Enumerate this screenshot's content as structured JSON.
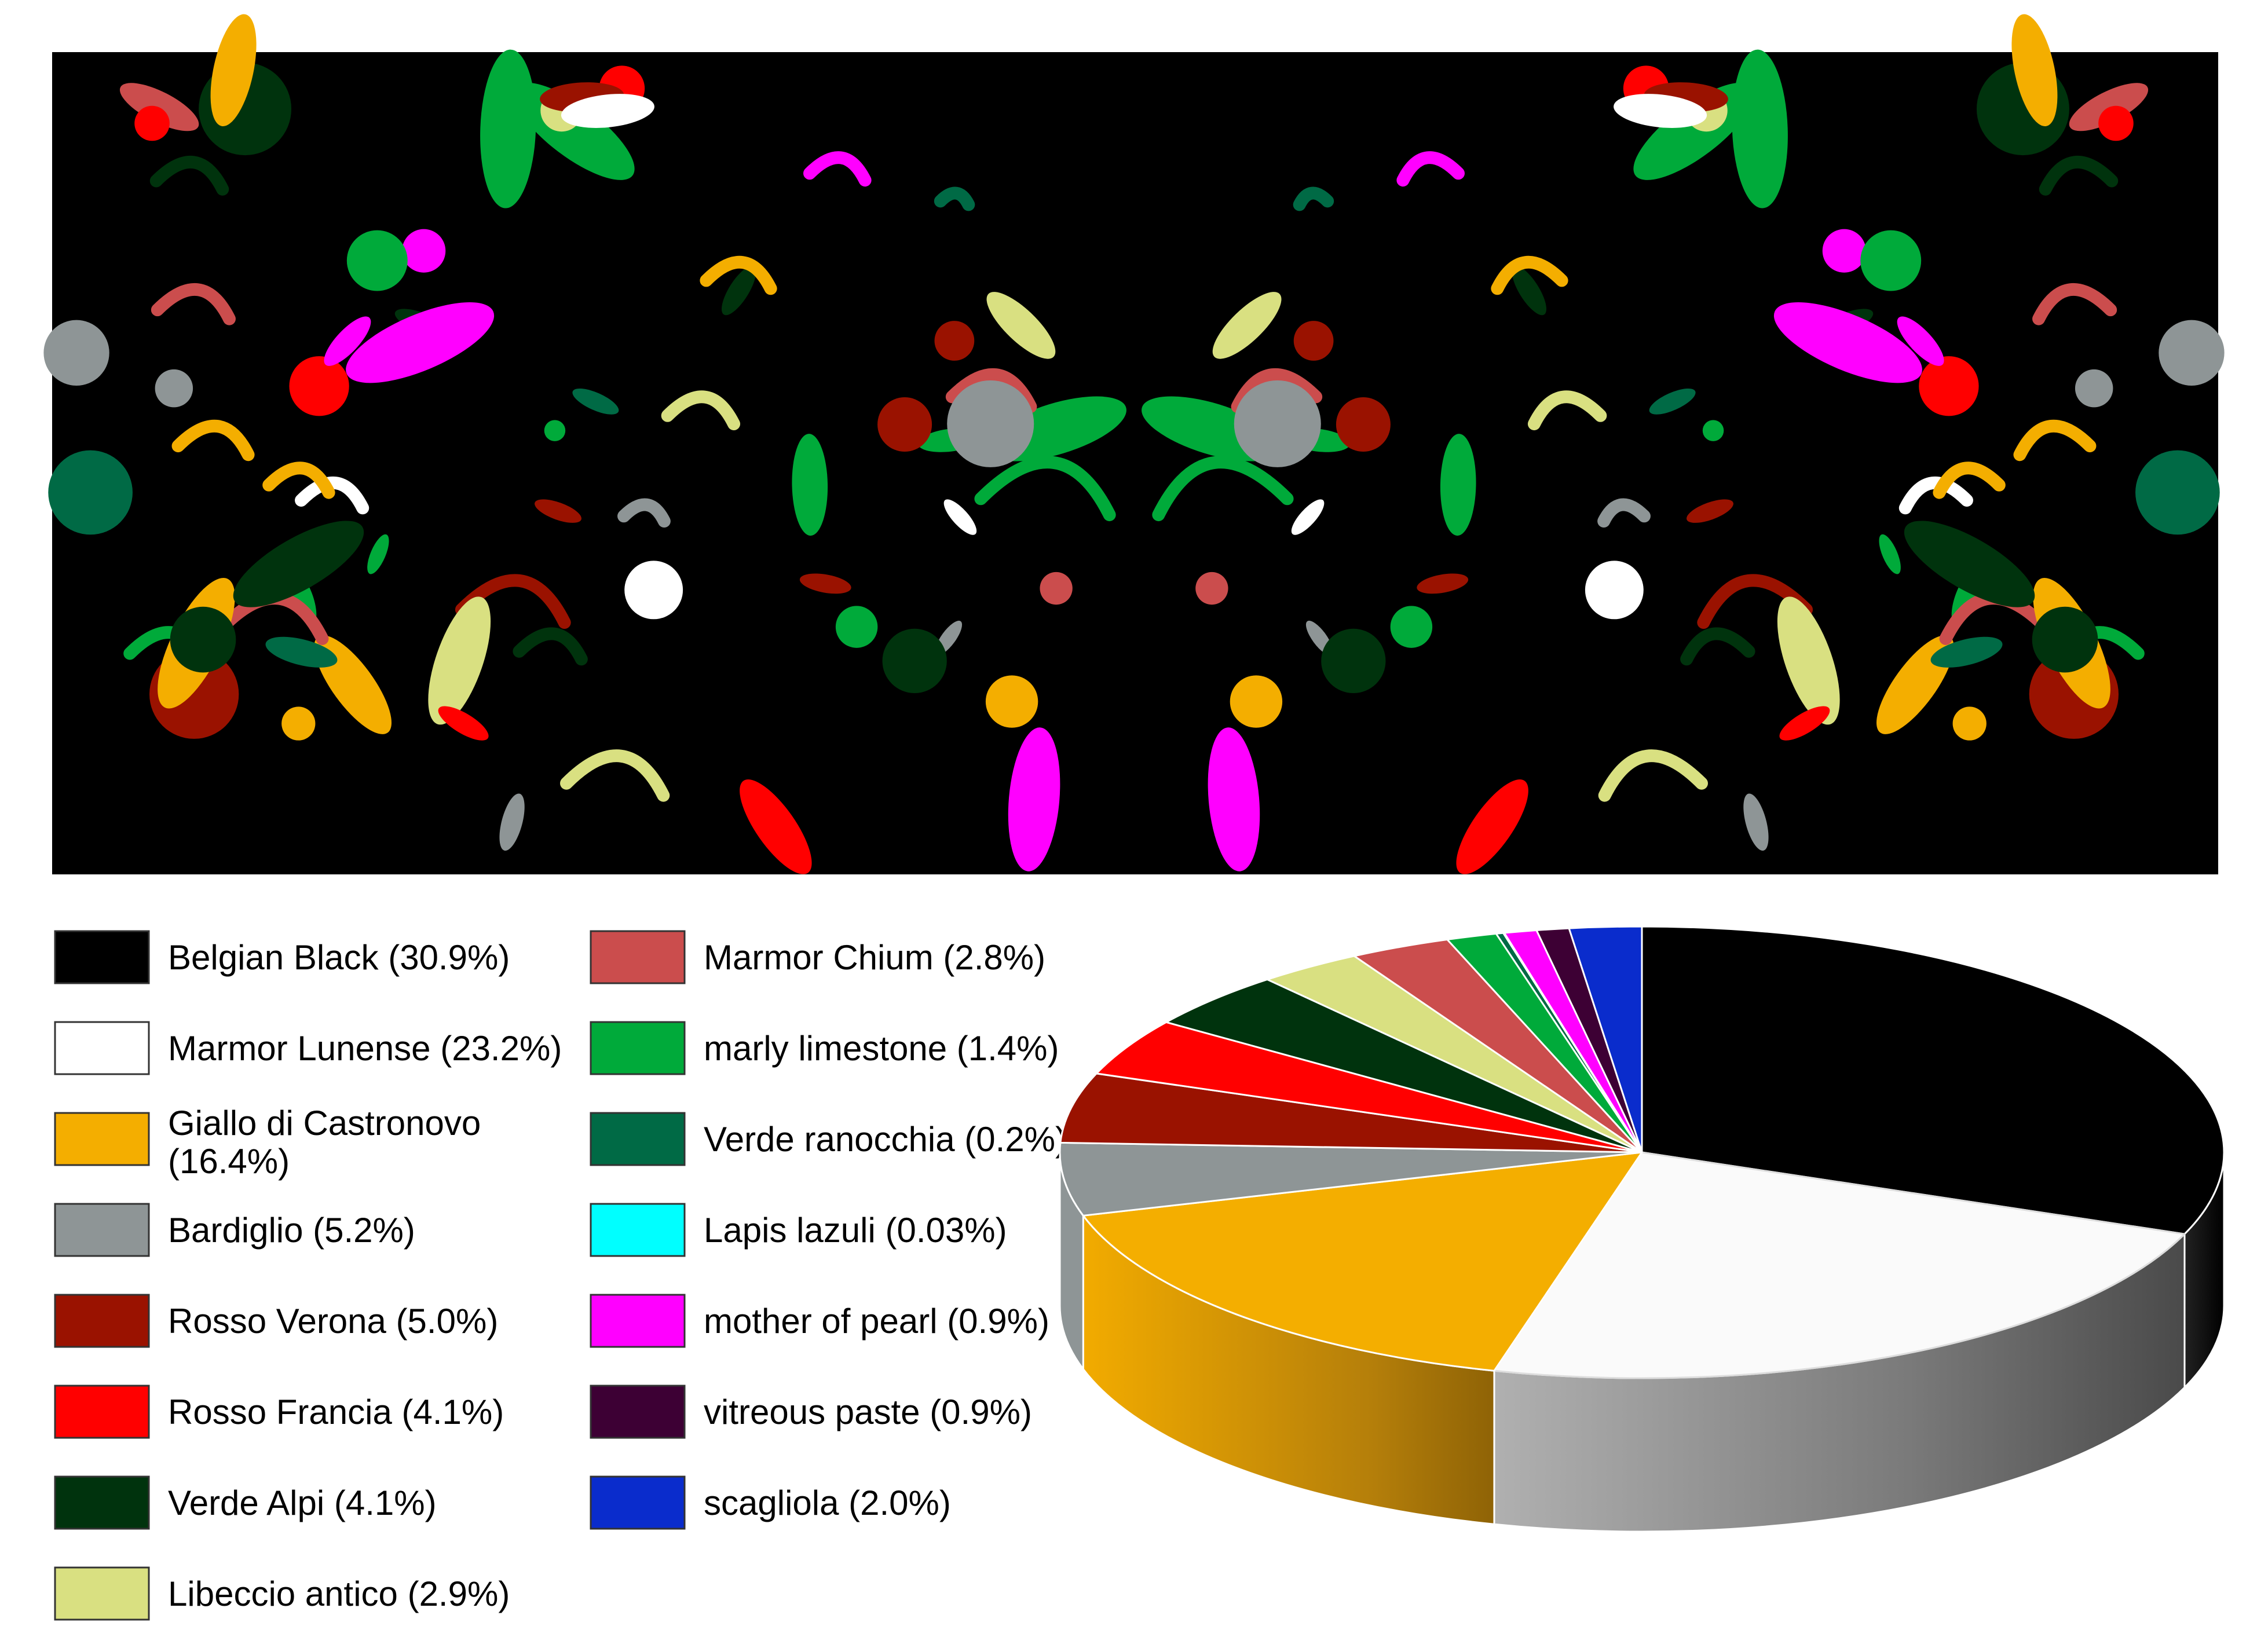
{
  "chart_data": {
    "type": "pie",
    "style": "3d",
    "title": "",
    "legend_placement": "left",
    "series": [
      {
        "name": "Belgian Black",
        "label": "Belgian Black (30.9%)",
        "value": 30.9,
        "color": "#000000"
      },
      {
        "name": "Marmor Lunense",
        "label": "Marmor Lunense (23.2%)",
        "value": 23.2,
        "color": "#ffffff"
      },
      {
        "name": "Giallo di Castronovo",
        "label": "Giallo di Castronovo (16.4%)",
        "value": 16.4,
        "color": "#f4ae00"
      },
      {
        "name": "Bardiglio",
        "label": "Bardiglio (5.2%)",
        "value": 5.2,
        "color": "#8e9596"
      },
      {
        "name": "Rosso Verona",
        "label": "Rosso Verona (5.0%)",
        "value": 5.0,
        "color": "#9a1200"
      },
      {
        "name": "Rosso Francia",
        "label": "Rosso Francia (4.1%)",
        "value": 4.1,
        "color": "#ff0000"
      },
      {
        "name": "Verde Alpi",
        "label": "Verde Alpi (4.1%)",
        "value": 4.1,
        "color": "#00330d"
      },
      {
        "name": "Libeccio antico",
        "label": "Libeccio antico (2.9%)",
        "value": 2.9,
        "color": "#d9e081"
      },
      {
        "name": "Marmor Chium",
        "label": "Marmor Chium (2.8%)",
        "value": 2.8,
        "color": "#cb4d4d"
      },
      {
        "name": "marly limestone",
        "label": "marly limestone (1.4%)",
        "value": 1.4,
        "color": "#00aa3a"
      },
      {
        "name": "Verde ranocchia",
        "label": "Verde ranocchia (0.2%)",
        "value": 0.2,
        "color": "#006a45"
      },
      {
        "name": "Lapis lazuli",
        "label": "Lapis lazuli (0.03%)",
        "value": 0.03,
        "color": "#00ffff"
      },
      {
        "name": "mother of pearl",
        "label": "mother of pearl (0.9%)",
        "value": 0.9,
        "color": "#ff00ff"
      },
      {
        "name": "vitreous paste",
        "label": "vitreous paste (0.9%)",
        "value": 0.9,
        "color": "#3d0034"
      },
      {
        "name": "scagliola",
        "label": "scagliola (2.0%)",
        "value": 2.0,
        "color": "#0a2ccc"
      }
    ]
  }
}
